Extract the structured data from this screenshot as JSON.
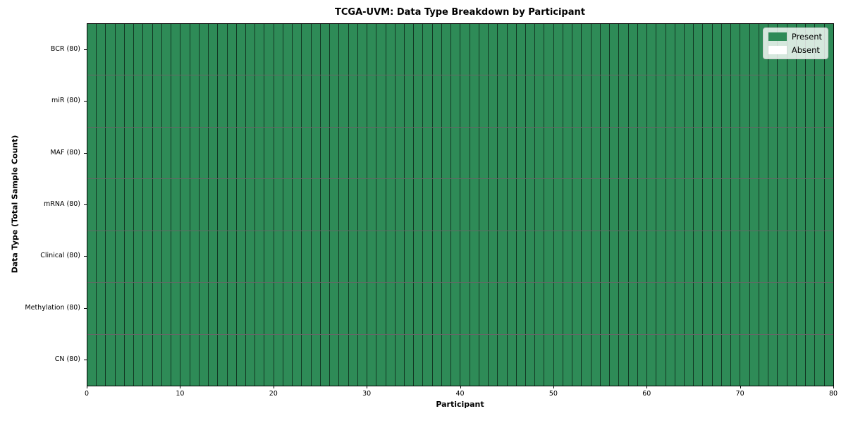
{
  "chart_data": {
    "type": "heatmap",
    "title": "TCGA-UVM: Data Type Breakdown by Participant",
    "xlabel": "Participant",
    "ylabel": "Data Type (Total Sample Count)",
    "x_ticks": [
      0,
      10,
      20,
      30,
      40,
      50,
      60,
      70,
      80
    ],
    "x_range": [
      0,
      80
    ],
    "n_participants": 80,
    "rows": [
      {
        "label": "BCR (80)",
        "present_count": 80,
        "absent_count": 0
      },
      {
        "label": "miR (80)",
        "present_count": 80,
        "absent_count": 0
      },
      {
        "label": "MAF (80)",
        "present_count": 80,
        "absent_count": 0
      },
      {
        "label": "mRNA (80)",
        "present_count": 80,
        "absent_count": 0
      },
      {
        "label": "Clinical (80)",
        "present_count": 80,
        "absent_count": 0
      },
      {
        "label": "Methylation (80)",
        "present_count": 80,
        "absent_count": 0
      },
      {
        "label": "CN (80)",
        "present_count": 80,
        "absent_count": 0
      }
    ],
    "all_cells_present": true,
    "legend": {
      "position": "upper right",
      "entries": [
        {
          "label": "Present",
          "color": "#2e8b57"
        },
        {
          "label": "Absent",
          "color": "#ffffff"
        }
      ]
    },
    "colors": {
      "present": "#2e8b57",
      "absent": "#ffffff",
      "cell_edge": "rgba(0,0,0,0.60)",
      "spine": "#000000"
    },
    "layout": {
      "grid": "cell borders on",
      "legend_position": "upper right"
    }
  }
}
